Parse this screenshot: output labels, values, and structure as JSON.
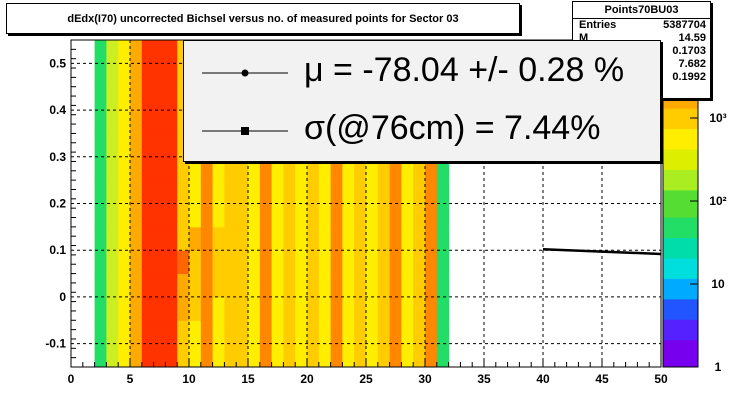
{
  "title": "dEdx(I70) uncorrected Bichsel versus no. of measured points for Sector 03",
  "stats": {
    "name": "Points70BU03",
    "entries_label": "Entries",
    "entries_value": "5387704",
    "rows": [
      {
        "key": "M",
        "value": "14.59"
      },
      {
        "key": "",
        "value": "0.1703"
      },
      {
        "key": "",
        "value": "7.682"
      },
      {
        "key": "",
        "value": "0.1992"
      }
    ]
  },
  "legend": {
    "entries": [
      {
        "text": "μ  = -78.04 +/-  0.28 %",
        "marker": "circle"
      },
      {
        "text": "σ(@76cm) =  7.44%",
        "marker": "square"
      }
    ]
  },
  "chart_data": {
    "type": "heatmap",
    "xlim": [
      0,
      50
    ],
    "ylim": [
      -0.15,
      0.55
    ],
    "x_ticks": [
      "0",
      "5",
      "10",
      "15",
      "20",
      "25",
      "30",
      "35",
      "40",
      "45",
      "50"
    ],
    "y_ticks": [
      "-0.1",
      "0",
      "0.1",
      "0.2",
      "0.3",
      "0.4",
      "0.5"
    ],
    "colorbar_ticks": [
      "1",
      "10",
      "10²",
      "10³"
    ],
    "grid": true,
    "columns": [
      {
        "x": 2,
        "bands": [
          "#22dd66",
          "#22dd66",
          "#22dd66",
          "#22dd66",
          "#22dd66",
          "#22dd66",
          "#22dd66",
          "#22dd66",
          "#22dd66",
          "#22dd66",
          "#22dd66",
          "#22dd66",
          "#22dd66",
          "#22dd66"
        ]
      },
      {
        "x": 3,
        "bands": [
          "#ccee22",
          "#ccee22",
          "#ccee22",
          "#ccee22",
          "#ccee22",
          "#ccee22",
          "#ccee22",
          "#ccee22",
          "#ccee22",
          "#ccee22",
          "#ccee22",
          "#ccee22",
          "#ccee22",
          "#ccee22"
        ]
      },
      {
        "x": 4,
        "bands": [
          "#ffee00",
          "#ffee00",
          "#ffee00",
          "#ffee00",
          "#ffee00",
          "#ffee00",
          "#ffee00",
          "#ffee00",
          "#ffee00",
          "#ffee00",
          "#ffee00",
          "#ffee00",
          "#ffee00",
          "#ffee00"
        ]
      },
      {
        "x": 5,
        "bands": [
          "#ffaa00",
          "#ffaa00",
          "#ffaa00",
          "#ffaa00",
          "#ffaa00",
          "#ffaa00",
          "#ffaa00",
          "#ffaa00",
          "#ffaa00",
          "#ffaa00",
          "#ffaa00",
          "#ffaa00",
          "#ffaa00",
          "#ffaa00"
        ]
      },
      {
        "x": 6,
        "bands": [
          "#ff3300",
          "#ff3300",
          "#ff3300",
          "#ff3300",
          "#ff3300",
          "#ff3300",
          "#ff3300",
          "#ff3300",
          "#ff3300",
          "#ff3300",
          "#ff3300",
          "#ff3300",
          "#ff3300",
          "#ff3300"
        ]
      },
      {
        "x": 7,
        "bands": [
          "#ff3300",
          "#ff3300",
          "#ff3300",
          "#ff3300",
          "#ff3300",
          "#ff3300",
          "#ff3300",
          "#ff3300",
          "#ff3300",
          "#ff3300",
          "#ff3300",
          "#ff3300",
          "#ff3300",
          "#ff3300"
        ]
      },
      {
        "x": 8,
        "bands": [
          "#ff3300",
          "#ff3300",
          "#ff3300",
          "#ff3300",
          "#ff3300",
          "#ff3300",
          "#ff3300",
          "#ff3300",
          "#ff3300",
          "#ff3300",
          "#ff3300",
          "#ff3300",
          "#ff3300",
          "#ff3300"
        ]
      },
      {
        "x": 9,
        "bands": [
          "#ffcc00",
          "#ffcc00",
          "#ffaa00",
          "#ffaa00",
          "#ff6600",
          "#ffcc00",
          "#ffcc00",
          "#ffcc00",
          "#ffcc00",
          "#ffcc00",
          "#ffcc00",
          "#ffcc00",
          "#ffcc00",
          "#ffcc00"
        ]
      },
      {
        "x": 10,
        "bands": [
          "#ffee00",
          "#ffee00",
          "#ffcc00",
          "#ffcc00",
          "#ffcc00",
          "#ffaa00",
          "#ffee00",
          "#ffee00",
          "#ffee00",
          "#ffee00",
          "#ffee00",
          "#ffee00",
          "#ffee00",
          "#ffee00"
        ]
      },
      {
        "x": 11,
        "bands": [
          "#ff8800",
          "#ff8800",
          "#ff8800",
          "#ff8800",
          "#ff8800",
          "#ff8800",
          "#ff8800",
          "#ff8800",
          "#ff8800",
          "#ff8800",
          "#ff8800",
          "#ff8800",
          "#ff8800",
          "#ff8800"
        ]
      },
      {
        "x": 12,
        "bands": [
          "#ffee00",
          "#ffee00",
          "#ffee00",
          "#ffcc00",
          "#ffcc00",
          "#ffcc00",
          "#ffee00",
          "#ffee00",
          "#ffee00",
          "#ffee00",
          "#ffee00",
          "#ffee00",
          "#ffee00",
          "#ffee00"
        ]
      },
      {
        "x": 13,
        "bands": [
          "#ffcc00",
          "#ffcc00",
          "#ffcc00",
          "#ffcc00",
          "#ffcc00",
          "#ffcc00",
          "#ffcc00",
          "#ffcc00",
          "#ffcc00",
          "#ffcc00",
          "#ffcc00",
          "#ffcc00",
          "#ffcc00",
          "#ffcc00"
        ]
      },
      {
        "x": 14,
        "bands": [
          "#ffcc00",
          "#ffcc00",
          "#ffcc00",
          "#ffcc00",
          "#ffcc00",
          "#ffcc00",
          "#ffcc00",
          "#ffcc00",
          "#ffcc00",
          "#ffcc00",
          "#ffcc00",
          "#ffcc00",
          "#ffcc00",
          "#ffcc00"
        ]
      },
      {
        "x": 15,
        "bands": [
          "#ffee00",
          "#ffee00",
          "#ffee00",
          "#ffee00",
          "#ffee00",
          "#ffee00",
          "#ffee00",
          "#ffee00",
          "#ffee00",
          "#ffee00",
          "#ffee00",
          "#ffee00",
          "#ffee00",
          "#ffee00"
        ]
      },
      {
        "x": 16,
        "bands": [
          "#ff8800",
          "#ff8800",
          "#ff8800",
          "#ff8800",
          "#ff8800",
          "#ff8800",
          "#ff8800",
          "#ff8800",
          "#ff8800",
          "#ff8800",
          "#ff8800",
          "#ff8800",
          "#ff8800",
          "#ff8800"
        ]
      },
      {
        "x": 17,
        "bands": [
          "#ffee00",
          "#ffee00",
          "#ffee00",
          "#ffee00",
          "#ffee00",
          "#ffee00",
          "#ffee00",
          "#ffee00",
          "#ffee00",
          "#ffee00",
          "#ffee00",
          "#ffee00",
          "#ffee00",
          "#ffee00"
        ]
      },
      {
        "x": 18,
        "bands": [
          "#ffcc00",
          "#ffcc00",
          "#ffcc00",
          "#ffcc00",
          "#ffcc00",
          "#ffcc00",
          "#ffcc00",
          "#ffcc00",
          "#ffcc00",
          "#ffcc00",
          "#ffcc00",
          "#ffcc00",
          "#ffcc00",
          "#ffcc00"
        ]
      },
      {
        "x": 19,
        "bands": [
          "#ffee00",
          "#ffee00",
          "#ffee00",
          "#ffee00",
          "#ffee00",
          "#ffee00",
          "#ffee00",
          "#ffee00",
          "#ffee00",
          "#ffee00",
          "#ffee00",
          "#ffee00",
          "#ffee00",
          "#ffee00"
        ]
      },
      {
        "x": 20,
        "bands": [
          "#ffcc00",
          "#ffcc00",
          "#ffcc00",
          "#ffcc00",
          "#ffcc00",
          "#ffcc00",
          "#ffcc00",
          "#ffcc00",
          "#ffcc00",
          "#ffcc00",
          "#ffcc00",
          "#ffcc00",
          "#ffcc00",
          "#ffcc00"
        ]
      },
      {
        "x": 21,
        "bands": [
          "#ffee00",
          "#ffee00",
          "#ffee00",
          "#ffee00",
          "#ffee00",
          "#ffee00",
          "#ffee00",
          "#ffee00",
          "#ffee00",
          "#ffee00",
          "#ffee00",
          "#ffee00",
          "#ffee00",
          "#ffee00"
        ]
      },
      {
        "x": 22,
        "bands": [
          "#ff8800",
          "#ff8800",
          "#ff8800",
          "#ff8800",
          "#ff8800",
          "#ff8800",
          "#ff8800",
          "#ff8800",
          "#ff8800",
          "#ff8800",
          "#ff8800",
          "#ff8800",
          "#ff8800",
          "#ff8800"
        ]
      },
      {
        "x": 23,
        "bands": [
          "#ffee00",
          "#ffee00",
          "#ffee00",
          "#ffee00",
          "#ffee00",
          "#ffee00",
          "#ffee00",
          "#ffee00",
          "#ffee00",
          "#ffee00",
          "#ffee00",
          "#ffee00",
          "#ffee00",
          "#ffee00"
        ]
      },
      {
        "x": 24,
        "bands": [
          "#ffcc00",
          "#ffcc00",
          "#ffcc00",
          "#ffcc00",
          "#ffcc00",
          "#ffcc00",
          "#ffcc00",
          "#ffcc00",
          "#ffcc00",
          "#ffcc00",
          "#ffcc00",
          "#ffcc00",
          "#ffcc00",
          "#ffcc00"
        ]
      },
      {
        "x": 25,
        "bands": [
          "#ffee00",
          "#ffee00",
          "#ffee00",
          "#ffee00",
          "#ffee00",
          "#ffee00",
          "#ffee00",
          "#ffee00",
          "#ffee00",
          "#ffee00",
          "#ffee00",
          "#ffee00",
          "#ffee00",
          "#ffee00"
        ]
      },
      {
        "x": 26,
        "bands": [
          "#ffcc00",
          "#ffcc00",
          "#ffcc00",
          "#ffcc00",
          "#ffcc00",
          "#ffcc00",
          "#ffcc00",
          "#ffcc00",
          "#ffcc00",
          "#ffcc00",
          "#ffcc00",
          "#ffcc00",
          "#ffcc00",
          "#ffcc00"
        ]
      },
      {
        "x": 27,
        "bands": [
          "#ff8800",
          "#ff8800",
          "#ff8800",
          "#ff8800",
          "#ff8800",
          "#ff8800",
          "#ff8800",
          "#ff8800",
          "#ff8800",
          "#ff8800",
          "#ff8800",
          "#ff8800",
          "#ff8800",
          "#ff8800"
        ]
      },
      {
        "x": 28,
        "bands": [
          "#ffee00",
          "#ffee00",
          "#ffee00",
          "#ffee00",
          "#ffee00",
          "#ffee00",
          "#ffee00",
          "#ffee00",
          "#ffee00",
          "#ffee00",
          "#ffee00",
          "#ffee00",
          "#ffee00",
          "#ffee00"
        ]
      },
      {
        "x": 29,
        "bands": [
          "#ffcc00",
          "#ffcc00",
          "#ffcc00",
          "#ffcc00",
          "#ffcc00",
          "#ffcc00",
          "#ffcc00",
          "#ffcc00",
          "#ffcc00",
          "#ffcc00",
          "#ffcc00",
          "#ffcc00",
          "#ffcc00",
          "#ffcc00"
        ]
      },
      {
        "x": 30,
        "bands": [
          "#ff8800",
          "#ff8800",
          "#ff8800",
          "#ff8800",
          "#ff8800",
          "#ff8800",
          "#ff8800",
          "#ff8800",
          "#ff8800",
          "#ff8800",
          "#ff8800",
          "#ff8800",
          "#ff8800",
          "#ff8800"
        ]
      },
      {
        "x": 31,
        "bands": [
          "#22dd66",
          "#22dd66",
          "#22dd66",
          "#22dd66",
          "#22dd66",
          "#22dd66",
          "#22dd66",
          "#22dd66",
          "#22dd66",
          "#22dd66",
          "#22dd66",
          "#22dd66",
          "#22dd66",
          "#22dd66"
        ]
      }
    ],
    "fit_line": {
      "x": [
        40,
        50
      ],
      "y": [
        0.102,
        0.092
      ]
    }
  }
}
